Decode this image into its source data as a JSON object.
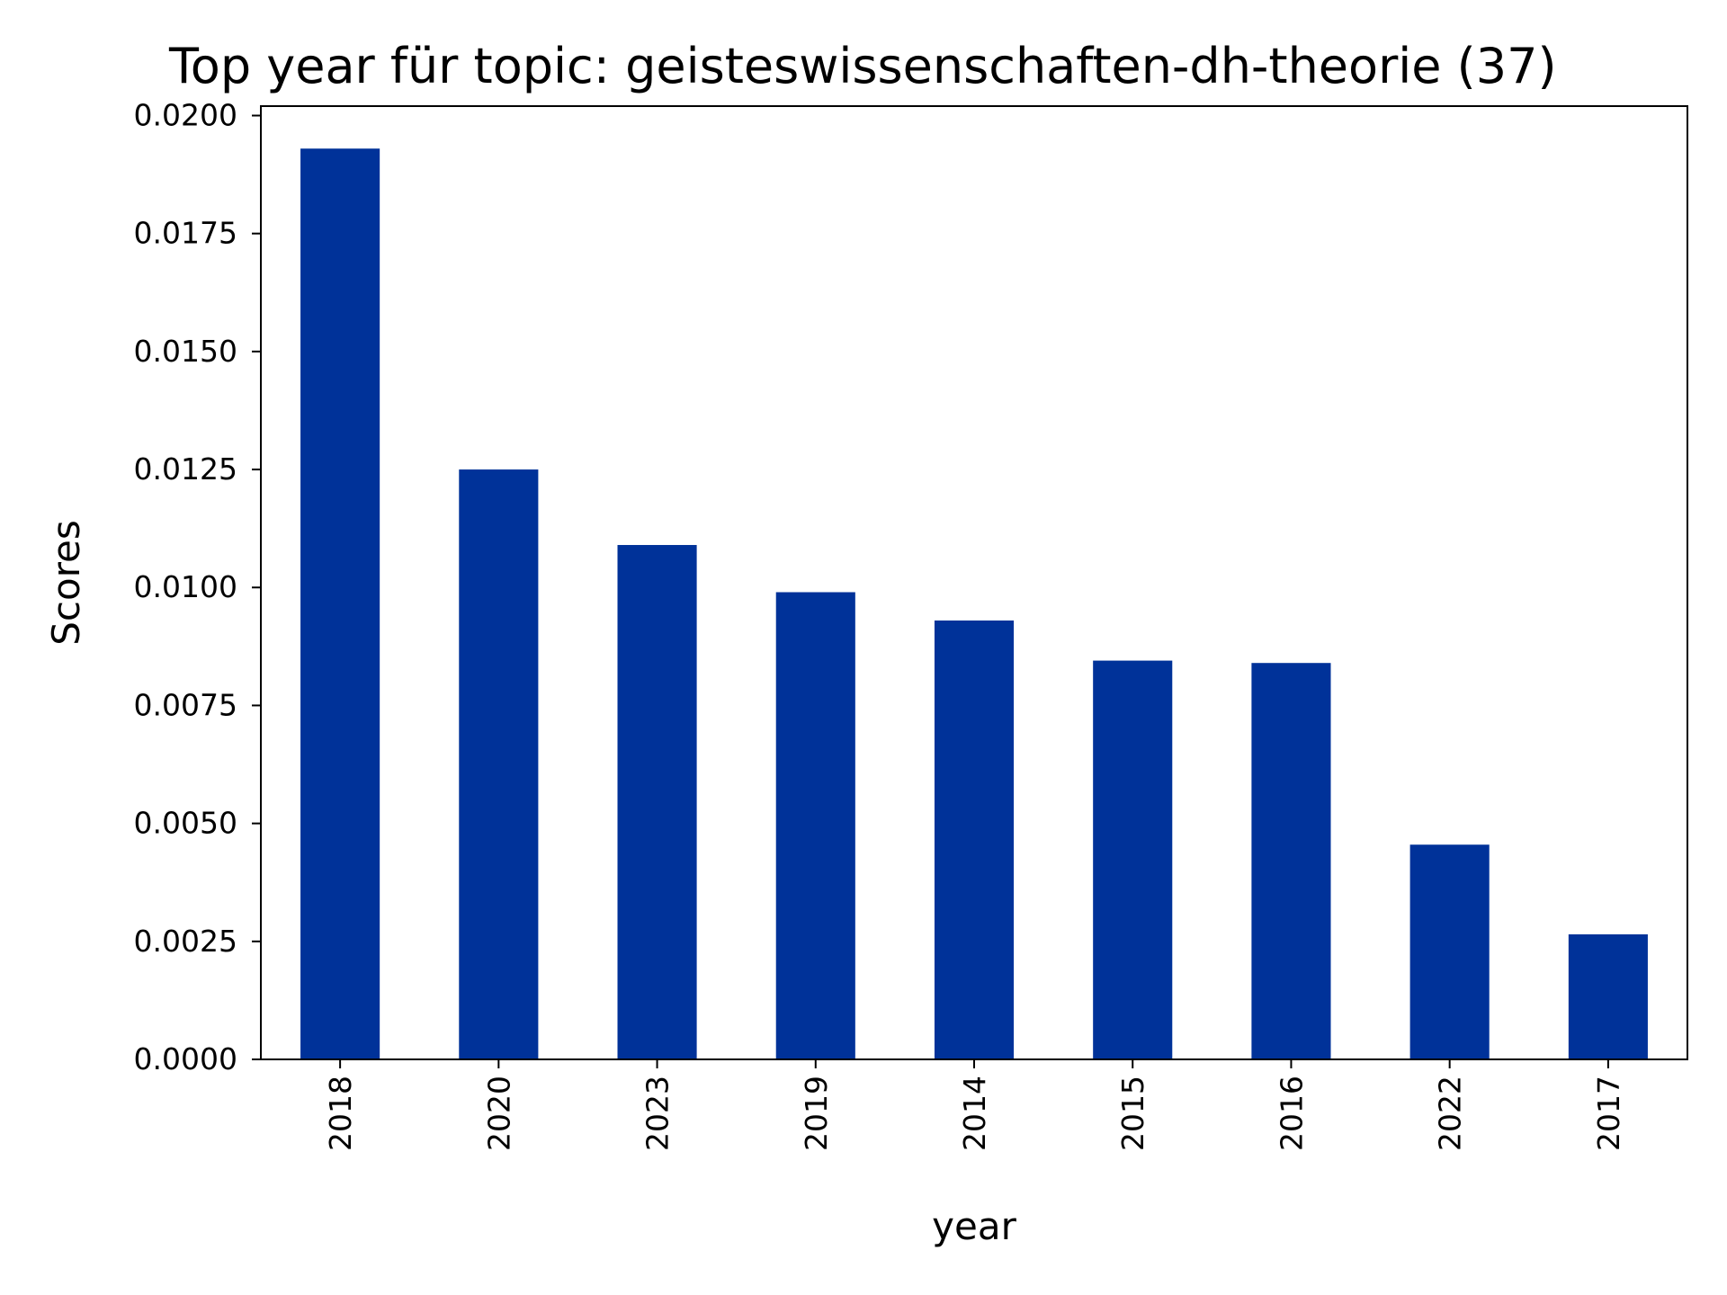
{
  "chart_data": {
    "type": "bar",
    "title": "Top year für topic: geisteswissenschaften-dh-theorie (37)",
    "xlabel": "year",
    "ylabel": "Scores",
    "categories": [
      "2018",
      "2020",
      "2023",
      "2019",
      "2014",
      "2015",
      "2016",
      "2022",
      "2017"
    ],
    "values": [
      0.0193,
      0.0125,
      0.0109,
      0.0099,
      0.0093,
      0.00845,
      0.0084,
      0.00455,
      0.00265
    ],
    "ylim": [
      0,
      0.0202
    ],
    "yticks": [
      "0.0000",
      "0.0025",
      "0.0050",
      "0.0075",
      "0.0100",
      "0.0125",
      "0.0150",
      "0.0175",
      "0.0200"
    ],
    "grid": false,
    "legend": "none",
    "colors": {
      "bar": "#003299",
      "axis": "#000000",
      "background": "#ffffff"
    }
  }
}
